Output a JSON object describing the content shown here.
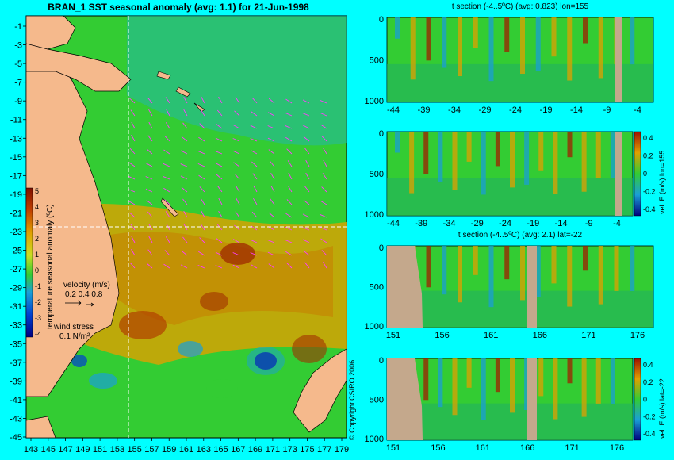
{
  "colors": {
    "background": "#00ffff",
    "land": "#f5b98c",
    "land_section": "#c4a88c",
    "ocean": "#33cc33",
    "warm": "#e0a000",
    "hot": "#a02000",
    "cool": "#1a9fd6",
    "cold": "#000080",
    "arrow": "#ff3fff"
  },
  "main_map": {
    "title": "BRAN_1  SST seasonal anomaly (avg: 1.1) for 21-Jun-1998",
    "y_ticks": [
      "-1",
      "-3",
      "-5",
      "-7",
      "-9",
      "-11",
      "-13",
      "-15",
      "-17",
      "-19",
      "-21",
      "-23",
      "-25",
      "-27",
      "-29",
      "-31",
      "-33",
      "-35",
      "-37",
      "-39",
      "-41",
      "-43",
      "-45"
    ],
    "x_ticks": [
      "143",
      "145",
      "147",
      "149",
      "151",
      "153",
      "155",
      "157",
      "159",
      "161",
      "163",
      "165",
      "167",
      "169",
      "171",
      "173",
      "175",
      "177",
      "179"
    ],
    "colorbar_label": "temperature seasonal anomaly (ºC)",
    "colorbar_ticks": [
      "5",
      "4",
      "3",
      "2",
      "1",
      "0",
      "-1",
      "-2",
      "-3",
      "-4"
    ],
    "velocity_label": "velocity (m/s)",
    "velocity_scale": "0.2 0.4 0.8",
    "wind_label": "wind stress",
    "wind_scale": "0.1 N/m²",
    "copyright": "© Copyright CSIRO 2006"
  },
  "chart_data": [
    {
      "type": "heatmap",
      "title": "BRAN_1  SST seasonal anomaly (avg: 1.1) for 21-Jun-1998",
      "x_ticks": [
        143,
        145,
        147,
        149,
        151,
        153,
        155,
        157,
        159,
        161,
        163,
        165,
        167,
        169,
        171,
        173,
        175,
        177,
        179
      ],
      "y_ticks": [
        -1,
        -3,
        -5,
        -7,
        -9,
        -11,
        -13,
        -15,
        -17,
        -19,
        -21,
        -23,
        -25,
        -27,
        -29,
        -31,
        -33,
        -35,
        -37,
        -39,
        -41,
        -43,
        -45
      ],
      "colorbar_range": [
        -4,
        5
      ],
      "section_lines": {
        "lon": 155,
        "lat": -22
      }
    },
    {
      "type": "heatmap",
      "title": "t section (-4..5ºC) (avg: 0.823) lon=155",
      "x_ticks": [
        -44,
        -39,
        -34,
        -29,
        -24,
        -19,
        -14,
        -9,
        -4
      ],
      "y_ticks": [
        0,
        500,
        1000
      ]
    },
    {
      "type": "heatmap",
      "title": "",
      "x_ticks": [
        -44,
        -39,
        -34,
        -29,
        -24,
        -19,
        -14,
        -9,
        -4
      ],
      "y_ticks": [
        0,
        500,
        1000
      ],
      "colorbar_label": "vel. E (m/s) lon=155",
      "colorbar_ticks": [
        "0.4",
        "0.2",
        "0",
        "-0.2",
        "-0.4"
      ]
    },
    {
      "type": "heatmap",
      "title": "t section (-4..5ºC) (avg: 2.1) lat=-22",
      "x_ticks": [
        151,
        156,
        161,
        166,
        171,
        176
      ],
      "y_ticks": [
        0,
        500,
        1000
      ]
    },
    {
      "type": "heatmap",
      "title": "",
      "x_ticks": [
        151,
        156,
        161,
        166,
        171,
        176
      ],
      "y_ticks": [
        0,
        500,
        1000
      ],
      "colorbar_label": "vel. E (m/s) lat=-22",
      "colorbar_ticks": [
        "0.4",
        "0.2",
        "0",
        "-0.2",
        "-0.4"
      ]
    }
  ]
}
